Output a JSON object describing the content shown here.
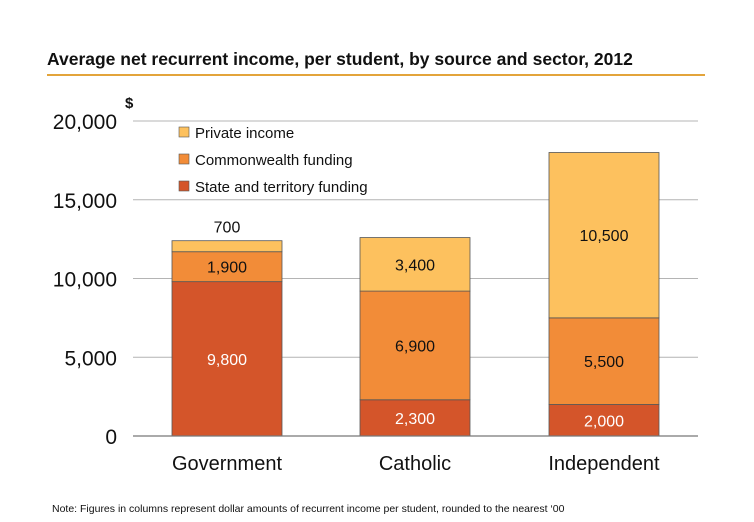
{
  "title": "Average net recurrent income, per student, by source and sector, 2012",
  "note": "Note: Figures in columns represent dollar amounts of recurrent income per student, rounded to the nearest ‘00",
  "colors": {
    "title_rule": "#e3a43b",
    "grid": "#b4b4b4",
    "bar_stroke": "#555555"
  },
  "chart_data": {
    "type": "bar",
    "stacked": true,
    "title": "Average net recurrent income, per student, by source and sector, 2012",
    "ylabel": "$",
    "xlabel": "",
    "ylim": [
      0,
      20000
    ],
    "yticks": [
      0,
      5000,
      10000,
      15000,
      20000
    ],
    "ytick_labels": [
      "0",
      "5,000",
      "10,000",
      "15,000",
      "20,000"
    ],
    "categories": [
      "Government",
      "Catholic",
      "Independent"
    ],
    "series": [
      {
        "name": "State and territory funding",
        "color": "#d4552a",
        "values": [
          9800,
          2300,
          2000
        ],
        "labels": [
          "9,800",
          "2,300",
          "2,000"
        ]
      },
      {
        "name": "Commonwealth funding",
        "color": "#f28c38",
        "values": [
          1900,
          6900,
          5500
        ],
        "labels": [
          "1,900",
          "6,900",
          "5,500"
        ]
      },
      {
        "name": "Private income",
        "color": "#fdc15e",
        "values": [
          700,
          3400,
          10500
        ],
        "labels": [
          "700",
          "3,400",
          "10,500"
        ]
      }
    ],
    "legend_order": [
      2,
      1,
      0
    ],
    "legend_position": "top-left",
    "grid": true
  }
}
